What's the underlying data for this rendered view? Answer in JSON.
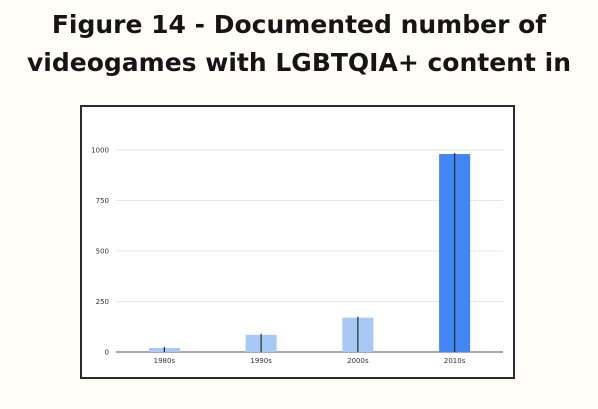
{
  "header": {
    "title_line_1": "Figure 14 - Documented number of",
    "title_line_2": "videogames with LGBTQIA+ content in"
  },
  "chart_data": {
    "type": "bar",
    "categories": [
      "1980s",
      "1990s",
      "2000s",
      "2010s"
    ],
    "values": [
      20,
      85,
      170,
      980
    ],
    "ylim": [
      0,
      1000
    ],
    "yticks": [
      0,
      250,
      500,
      750,
      1000
    ],
    "grid": true,
    "error_bar_lines": true,
    "colors": {
      "light_bar": "#a8c8f5",
      "highlight_bar": "#4285f4",
      "error_line": "#2b2b2b",
      "grid": "#e6e6e6",
      "axis": "#777777"
    }
  }
}
